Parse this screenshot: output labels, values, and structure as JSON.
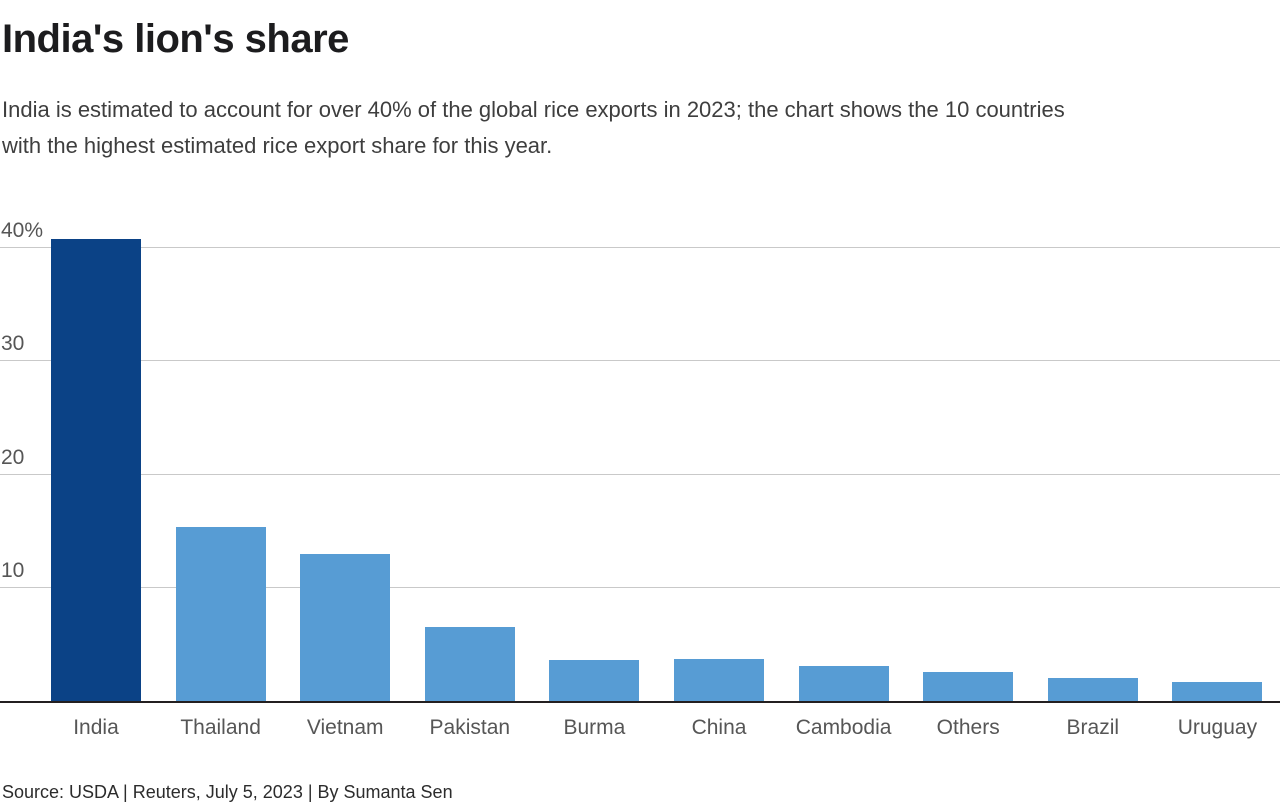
{
  "header": {
    "title": "India's lion's share",
    "subtitle_line1": "India is estimated to account for over 40% of the global rice exports in 2023; the chart shows the 10 countries",
    "subtitle_line2": "with the highest estimated rice export share for this year."
  },
  "chart_data": {
    "type": "bar",
    "title": "India's lion's share",
    "subtitle": "India is estimated to account for over 40% of the global rice exports in 2023; the chart shows the 10 countries with the highest estimated rice export share for this year.",
    "categories": [
      "India",
      "Thailand",
      "Vietnam",
      "Pakistan",
      "Burma",
      "China",
      "Cambodia",
      "Others",
      "Brazil",
      "Uruguay"
    ],
    "values": [
      40.8,
      15.4,
      13.0,
      6.5,
      3.6,
      3.7,
      3.1,
      2.6,
      2.0,
      1.7
    ],
    "unit": "%",
    "xlabel": "",
    "ylabel": "Estimated rice export share",
    "ylim": [
      0,
      40
    ],
    "y_ticks": [
      {
        "value": 10,
        "label": "10"
      },
      {
        "value": 20,
        "label": "20"
      },
      {
        "value": 30,
        "label": "30"
      },
      {
        "value": 40,
        "label": "40%"
      }
    ],
    "grid": "horizontal",
    "legend": "none",
    "highlight_category": "India",
    "colors": {
      "highlight_bar": "#0b4286",
      "default_bar": "#579cd4",
      "gridline": "#c9c9c9",
      "axis_line": "#231f20"
    }
  },
  "footer": {
    "source": "Source: USDA | Reuters, July 5, 2023 | By Sumanta Sen"
  }
}
